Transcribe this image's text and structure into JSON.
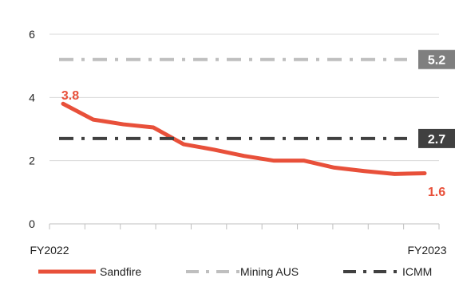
{
  "chart_data": {
    "type": "line",
    "x_start_label": "FY2022",
    "x_end_label": "FY2023",
    "ylim": [
      0,
      6
    ],
    "yticks": [
      0,
      2,
      4,
      6
    ],
    "grid": true,
    "legend_placement": "bottom",
    "series": [
      {
        "name": "Sandfire",
        "color": "#e8503a",
        "style": "solid",
        "values": [
          3.8,
          3.3,
          3.15,
          3.05,
          2.52,
          2.35,
          2.15,
          2.0,
          2.0,
          1.78,
          1.67,
          1.58,
          1.6
        ],
        "start_label": "3.8",
        "end_label": "1.6"
      },
      {
        "name": "Mining AUS",
        "color": "#bfbfbf",
        "style": "dashdot",
        "constant": 5.2,
        "badge": "5.2"
      },
      {
        "name": "ICMM",
        "color": "#404040",
        "style": "dashdot",
        "constant": 2.7,
        "badge": "2.7"
      }
    ]
  }
}
